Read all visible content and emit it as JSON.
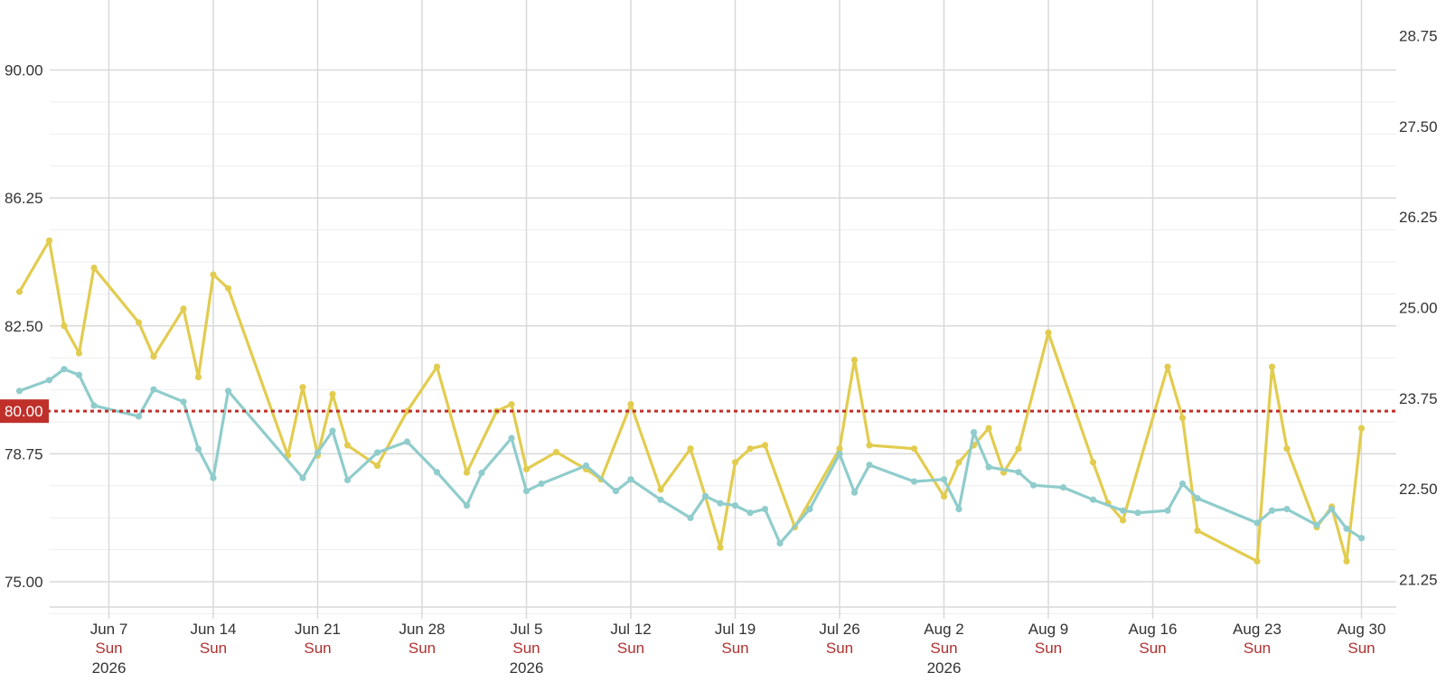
{
  "chart_data": {
    "type": "line",
    "title": "",
    "xlabel": "",
    "ylabel": "",
    "x_range": [
      "2026-06-01",
      "2026-09-01"
    ],
    "ylim_left": [
      75,
      90
    ],
    "ylim_right": [
      21.25,
      28.75
    ],
    "grid": true,
    "legend": "none",
    "left_ticks": [
      "75.00",
      "78.75",
      "82.50",
      "86.25",
      "90.00"
    ],
    "right_ticks": [
      "21.25",
      "22.50",
      "23.75",
      "25.00",
      "26.25",
      "27.50",
      "28.75"
    ],
    "x_ticks": [
      {
        "date": "2026-06-07",
        "label": "Jun 7",
        "weekday": "Sun",
        "year": "2026"
      },
      {
        "date": "2026-06-14",
        "label": "Jun 14",
        "weekday": "Sun",
        "year": ""
      },
      {
        "date": "2026-06-21",
        "label": "Jun 21",
        "weekday": "Sun",
        "year": ""
      },
      {
        "date": "2026-06-28",
        "label": "Jun 28",
        "weekday": "Sun",
        "year": ""
      },
      {
        "date": "2026-07-05",
        "label": "Jul 5",
        "weekday": "Sun",
        "year": "2026"
      },
      {
        "date": "2026-07-12",
        "label": "Jul 12",
        "weekday": "Sun",
        "year": ""
      },
      {
        "date": "2026-07-19",
        "label": "Jul 19",
        "weekday": "Sun",
        "year": ""
      },
      {
        "date": "2026-07-26",
        "label": "Jul 26",
        "weekday": "Sun",
        "year": ""
      },
      {
        "date": "2026-08-02",
        "label": "Aug 2",
        "weekday": "Sun",
        "year": "2026"
      },
      {
        "date": "2026-08-09",
        "label": "Aug 9",
        "weekday": "Sun",
        "year": ""
      },
      {
        "date": "2026-08-16",
        "label": "Aug 16",
        "weekday": "Sun",
        "year": ""
      },
      {
        "date": "2026-08-23",
        "label": "Aug 23",
        "weekday": "Sun",
        "year": ""
      },
      {
        "date": "2026-08-30",
        "label": "Aug 30",
        "weekday": "Sun",
        "year": ""
      }
    ],
    "reference_line": {
      "value": 80.0,
      "label": "80.00",
      "color": "#c0302a"
    },
    "series": [
      {
        "axis": "left",
        "color": "#e2cc4f",
        "points": [
          [
            "2026-06-01",
            83.5
          ],
          [
            "2026-06-03",
            85.0
          ],
          [
            "2026-06-04",
            82.5
          ],
          [
            "2026-06-05",
            81.7
          ],
          [
            "2026-06-06",
            84.2
          ],
          [
            "2026-06-09",
            82.6
          ],
          [
            "2026-06-10",
            81.6
          ],
          [
            "2026-06-12",
            83.0
          ],
          [
            "2026-06-13",
            81.0
          ],
          [
            "2026-06-14",
            84.0
          ],
          [
            "2026-06-15",
            83.6
          ],
          [
            "2026-06-19",
            78.7
          ],
          [
            "2026-06-20",
            80.7
          ],
          [
            "2026-06-21",
            78.7
          ],
          [
            "2026-06-22",
            80.5
          ],
          [
            "2026-06-23",
            79.0
          ],
          [
            "2026-06-25",
            78.4
          ],
          [
            "2026-06-27",
            80.0
          ],
          [
            "2026-06-29",
            81.3
          ],
          [
            "2026-07-01",
            78.2
          ],
          [
            "2026-07-03",
            80.0
          ],
          [
            "2026-07-04",
            80.2
          ],
          [
            "2026-07-05",
            78.3
          ],
          [
            "2026-07-07",
            78.8
          ],
          [
            "2026-07-09",
            78.3
          ],
          [
            "2026-07-10",
            78.0
          ],
          [
            "2026-07-12",
            80.2
          ],
          [
            "2026-07-14",
            77.7
          ],
          [
            "2026-07-16",
            78.9
          ],
          [
            "2026-07-17",
            77.5
          ],
          [
            "2026-07-18",
            76.0
          ],
          [
            "2026-07-19",
            78.5
          ],
          [
            "2026-07-20",
            78.9
          ],
          [
            "2026-07-21",
            79.0
          ],
          [
            "2026-07-23",
            76.6
          ],
          [
            "2026-07-26",
            78.9
          ],
          [
            "2026-07-27",
            81.5
          ],
          [
            "2026-07-28",
            79.0
          ],
          [
            "2026-07-31",
            78.9
          ],
          [
            "2026-08-02",
            77.5
          ],
          [
            "2026-08-03",
            78.5
          ],
          [
            "2026-08-04",
            79.0
          ],
          [
            "2026-08-05",
            79.5
          ],
          [
            "2026-08-06",
            78.2
          ],
          [
            "2026-08-07",
            78.9
          ],
          [
            "2026-08-09",
            82.3
          ],
          [
            "2026-08-12",
            78.5
          ],
          [
            "2026-08-13",
            77.3
          ],
          [
            "2026-08-14",
            76.8
          ],
          [
            "2026-08-17",
            81.3
          ],
          [
            "2026-08-18",
            79.8
          ],
          [
            "2026-08-19",
            76.5
          ],
          [
            "2026-08-23",
            75.6
          ],
          [
            "2026-08-24",
            81.3
          ],
          [
            "2026-08-25",
            78.9
          ],
          [
            "2026-08-27",
            76.6
          ],
          [
            "2026-08-28",
            77.2
          ],
          [
            "2026-08-29",
            75.6
          ],
          [
            "2026-08-30",
            79.5
          ]
        ]
      },
      {
        "axis": "right",
        "color": "#90cccc",
        "points": [
          [
            "2026-06-01",
            23.85
          ],
          [
            "2026-06-03",
            24.0
          ],
          [
            "2026-06-04",
            24.15
          ],
          [
            "2026-06-05",
            24.07
          ],
          [
            "2026-06-06",
            23.65
          ],
          [
            "2026-06-09",
            23.5
          ],
          [
            "2026-06-10",
            23.87
          ],
          [
            "2026-06-12",
            23.7
          ],
          [
            "2026-06-13",
            23.05
          ],
          [
            "2026-06-14",
            22.65
          ],
          [
            "2026-06-15",
            23.85
          ],
          [
            "2026-06-20",
            22.65
          ],
          [
            "2026-06-21",
            23.0
          ],
          [
            "2026-06-22",
            23.3
          ],
          [
            "2026-06-23",
            22.62
          ],
          [
            "2026-06-25",
            23.0
          ],
          [
            "2026-06-27",
            23.15
          ],
          [
            "2026-06-29",
            22.73
          ],
          [
            "2026-07-01",
            22.27
          ],
          [
            "2026-07-02",
            22.72
          ],
          [
            "2026-07-04",
            23.2
          ],
          [
            "2026-07-05",
            22.47
          ],
          [
            "2026-07-06",
            22.57
          ],
          [
            "2026-07-09",
            22.82
          ],
          [
            "2026-07-11",
            22.47
          ],
          [
            "2026-07-12",
            22.63
          ],
          [
            "2026-07-14",
            22.35
          ],
          [
            "2026-07-16",
            22.1
          ],
          [
            "2026-07-17",
            22.4
          ],
          [
            "2026-07-18",
            22.3
          ],
          [
            "2026-07-19",
            22.27
          ],
          [
            "2026-07-20",
            22.17
          ],
          [
            "2026-07-21",
            22.22
          ],
          [
            "2026-07-22",
            21.75
          ],
          [
            "2026-07-24",
            22.22
          ],
          [
            "2026-07-26",
            22.98
          ],
          [
            "2026-07-27",
            22.45
          ],
          [
            "2026-07-28",
            22.83
          ],
          [
            "2026-07-31",
            22.6
          ],
          [
            "2026-08-02",
            22.63
          ],
          [
            "2026-08-03",
            22.22
          ],
          [
            "2026-08-04",
            23.28
          ],
          [
            "2026-08-05",
            22.8
          ],
          [
            "2026-08-07",
            22.73
          ],
          [
            "2026-08-08",
            22.55
          ],
          [
            "2026-08-10",
            22.52
          ],
          [
            "2026-08-12",
            22.35
          ],
          [
            "2026-08-14",
            22.2
          ],
          [
            "2026-08-15",
            22.17
          ],
          [
            "2026-08-17",
            22.2
          ],
          [
            "2026-08-18",
            22.57
          ],
          [
            "2026-08-19",
            22.37
          ],
          [
            "2026-08-23",
            22.03
          ],
          [
            "2026-08-24",
            22.2
          ],
          [
            "2026-08-25",
            22.22
          ],
          [
            "2026-08-27",
            22.0
          ],
          [
            "2026-08-28",
            22.22
          ],
          [
            "2026-08-29",
            21.95
          ],
          [
            "2026-08-30",
            21.82
          ]
        ]
      }
    ]
  }
}
